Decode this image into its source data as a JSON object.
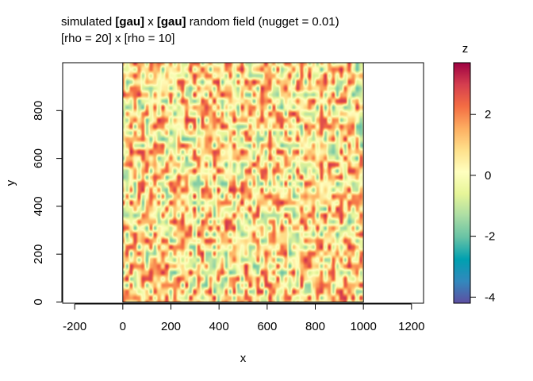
{
  "chart_data": {
    "type": "heatmap",
    "title": {
      "prefix": "simulated ",
      "bold1": "[gau]",
      "middle": " x ",
      "bold2": "[gau]",
      "suffix": " random field (nugget = 0.01)"
    },
    "subtitle": "[rho = 20] x [rho = 10]",
    "xlabel": "x",
    "ylabel": "y",
    "xlim": [
      -250,
      1250
    ],
    "ylim": [
      -5,
      1000
    ],
    "field_extent": {
      "x": [
        0,
        1000
      ],
      "y": [
        0,
        1000
      ]
    },
    "xticks": [
      "-200",
      "0",
      "200",
      "400",
      "600",
      "800",
      "1000",
      "1200"
    ],
    "yticks": [
      "0",
      "200",
      "400",
      "600",
      "800"
    ],
    "colorbar": {
      "label": "z",
      "range": [
        -4.2,
        3.7
      ],
      "ticks": [
        "2",
        "0",
        "-2",
        "-4"
      ],
      "palette": [
        "#5E4FA2",
        "#3288BD",
        "#00A0B0",
        "#66C2A5",
        "#ABDDA4",
        "#E6F598",
        "#FFFFBF",
        "#FEE08B",
        "#FDAE61",
        "#F46D43",
        "#D53E4F",
        "#9E0142"
      ]
    }
  }
}
